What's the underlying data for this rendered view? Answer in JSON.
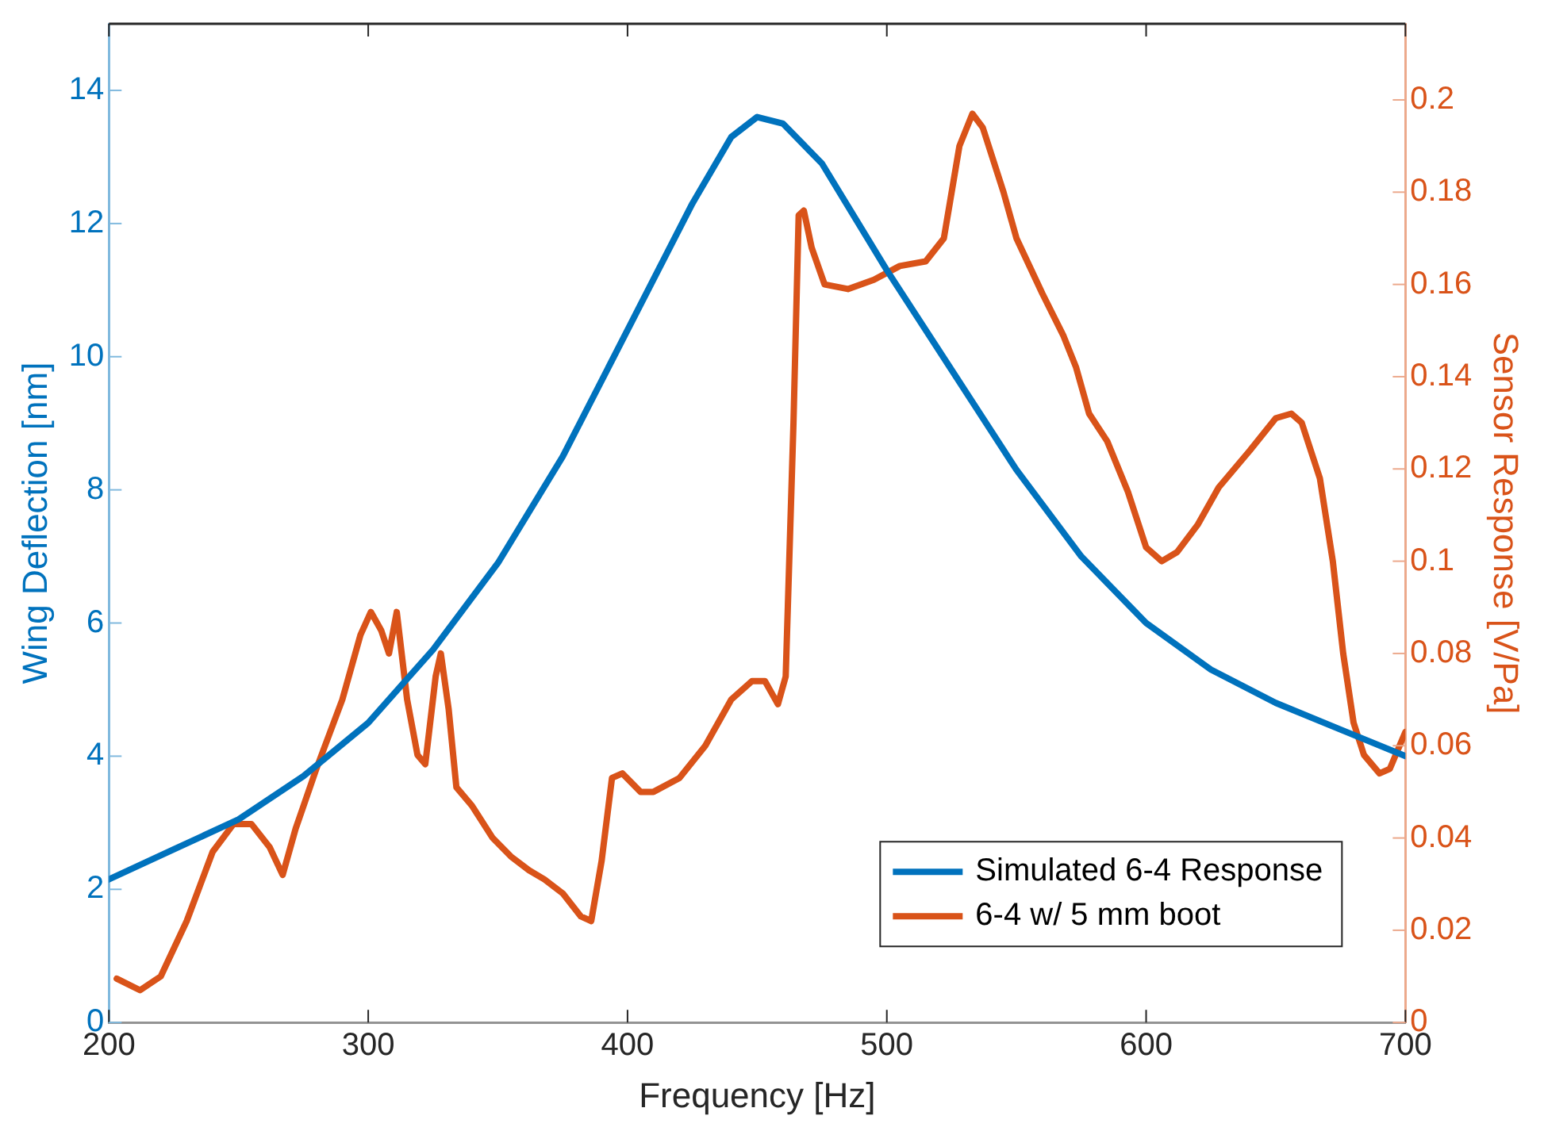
{
  "chart_data": {
    "type": "line",
    "xlabel": "Frequency [Hz]",
    "ylabel": "Wing Deflection [nm]",
    "y2label": "Sensor Response [V/Pa]",
    "xlim": [
      200,
      700
    ],
    "xticks": [
      200,
      300,
      400,
      500,
      600,
      700
    ],
    "ylim": [
      0,
      15
    ],
    "yticks": [
      0,
      2,
      4,
      6,
      8,
      10,
      12,
      14
    ],
    "y2lim": [
      0,
      0.2165
    ],
    "y2ticks": [
      0,
      0.02,
      0.04,
      0.06,
      0.08,
      0.1,
      0.12,
      0.14,
      0.16,
      0.18,
      0.2
    ],
    "legend": "bottom right",
    "grid": false,
    "marker": "none",
    "line_style": "solid",
    "series": [
      {
        "name": "Simulated 6-4 Response",
        "color": "#0072bd",
        "x": [
          200,
          225,
          250,
          275,
          300,
          325,
          350,
          375,
          400,
          425,
          440,
          450,
          460,
          475,
          500,
          525,
          550,
          575,
          600,
          625,
          650,
          675,
          700
        ],
        "values": [
          2.15,
          2.6,
          3.05,
          3.7,
          4.5,
          5.6,
          6.9,
          8.5,
          10.4,
          12.3,
          13.3,
          13.6,
          13.5,
          12.9,
          11.3,
          9.8,
          8.3,
          7.0,
          6.0,
          5.3,
          4.8,
          4.4,
          4.0
        ]
      },
      {
        "name": "6-4 w/ 5 mm boot",
        "color": "#d95319",
        "axis": "y2",
        "x": [
          203,
          212,
          220,
          230,
          240,
          248,
          255,
          262,
          267,
          272,
          280,
          290,
          297,
          301,
          305,
          308,
          311,
          315,
          319,
          322,
          326,
          328,
          331,
          334,
          340,
          348,
          355,
          362,
          368,
          375,
          382,
          386,
          390,
          394,
          398,
          405,
          410,
          420,
          430,
          440,
          448,
          453,
          458,
          461,
          464,
          466,
          468,
          471,
          476,
          485,
          495,
          505,
          515,
          522,
          528,
          533,
          537,
          545,
          550,
          560,
          568,
          573,
          578,
          585,
          593,
          600,
          606,
          612,
          620,
          628,
          640,
          650,
          656,
          660,
          667,
          672,
          676,
          680,
          684,
          690,
          694,
          700
        ],
        "values": [
          0.0095,
          0.007,
          0.01,
          0.022,
          0.037,
          0.043,
          0.043,
          0.038,
          0.032,
          0.042,
          0.055,
          0.07,
          0.084,
          0.089,
          0.085,
          0.08,
          0.089,
          0.07,
          0.058,
          0.056,
          0.075,
          0.08,
          0.068,
          0.051,
          0.047,
          0.04,
          0.036,
          0.033,
          0.031,
          0.028,
          0.023,
          0.022,
          0.035,
          0.053,
          0.054,
          0.05,
          0.05,
          0.053,
          0.06,
          0.07,
          0.074,
          0.074,
          0.069,
          0.075,
          0.13,
          0.175,
          0.176,
          0.168,
          0.16,
          0.159,
          0.161,
          0.164,
          0.165,
          0.17,
          0.19,
          0.197,
          0.194,
          0.18,
          0.17,
          0.158,
          0.149,
          0.142,
          0.132,
          0.126,
          0.115,
          0.103,
          0.1,
          0.102,
          0.108,
          0.116,
          0.124,
          0.131,
          0.132,
          0.13,
          0.118,
          0.1,
          0.08,
          0.065,
          0.058,
          0.054,
          0.055,
          0.063
        ]
      }
    ]
  }
}
